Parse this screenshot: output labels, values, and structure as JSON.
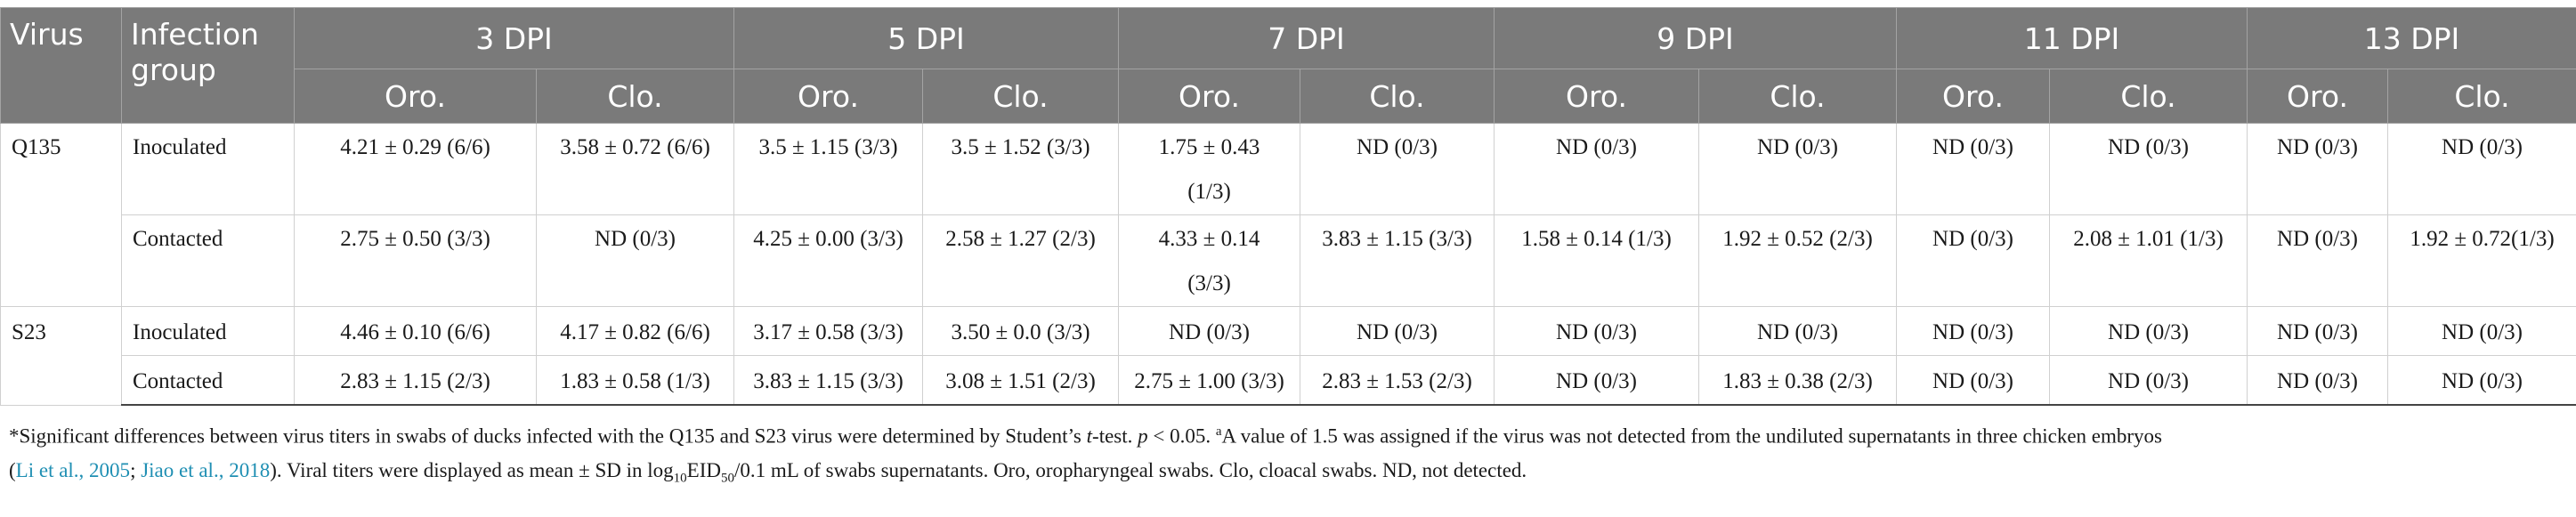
{
  "header": {
    "virus": "Virus",
    "group": "Infection group",
    "dpi": [
      "3 DPI",
      "5 DPI",
      "7 DPI",
      "9 DPI",
      "11 DPI",
      "13 DPI"
    ],
    "oro": "Oro.",
    "clo": "Clo."
  },
  "rows": [
    {
      "virus": "Q135",
      "group": "Inoculated",
      "cells": [
        "4.21 ± 0.29 (6/6)",
        "3.58 ± 0.72 (6/6)",
        "3.5 ± 1.15 (3/3)",
        "3.5 ± 1.52 (3/3)",
        "1.75 ± 0.43 (1/3)",
        "ND (0/3)",
        "ND (0/3)",
        "ND (0/3)",
        "ND (0/3)",
        "ND (0/3)",
        "ND (0/3)",
        "ND (0/3)"
      ]
    },
    {
      "virus": "",
      "group": "Contacted",
      "cells": [
        "2.75 ± 0.50 (3/3)",
        "ND (0/3)",
        "4.25 ± 0.00 (3/3)",
        "2.58 ± 1.27 (2/3)",
        "4.33 ± 0.14 (3/3)",
        "3.83 ± 1.15 (3/3)",
        "1.58 ± 0.14 (1/3)",
        "1.92 ± 0.52 (2/3)",
        "ND (0/3)",
        "2.08 ± 1.01 (1/3)",
        "ND (0/3)",
        "1.92 ± 0.72(1/3)"
      ]
    },
    {
      "virus": "S23",
      "group": "Inoculated",
      "cells": [
        "4.46 ± 0.10 (6/6)",
        "4.17 ± 0.82 (6/6)",
        "3.17 ± 0.58 (3/3)",
        "3.50 ± 0.0 (3/3)",
        "ND (0/3)",
        "ND (0/3)",
        "ND (0/3)",
        "ND (0/3)",
        "ND (0/3)",
        "ND (0/3)",
        "ND (0/3)",
        "ND (0/3)"
      ]
    },
    {
      "virus": "",
      "group": "Contacted",
      "cells": [
        "2.83 ± 1.15 (2/3)",
        "1.83 ± 0.58 (1/3)",
        "3.83 ± 1.15 (3/3)",
        "3.08 ± 1.51 (2/3)",
        "2.75 ± 1.00 (3/3)",
        "2.83 ± 1.53 (2/3)",
        "ND (0/3)",
        "1.83 ± 0.38 (2/3)",
        "ND (0/3)",
        "ND (0/3)",
        "ND (0/3)",
        "ND (0/3)"
      ]
    }
  ],
  "footnote": {
    "part1": "*Significant differences between virus titers in swabs of ducks infected with the Q135 and S23 virus were determined by Student’s ",
    "t": "t",
    "part2": "-test. ",
    "p": "p",
    "part3": " < 0.05. ",
    "sup_a": "a",
    "part4": "A value of 1.5 was assigned if the virus was not detected from the undiluted supernatants in three chicken embryos",
    "paren_open": "(",
    "cite1": "Li et al., 2005",
    "sep": "; ",
    "cite2": "Jiao et al., 2018",
    "part5": "). Viral titers were displayed as mean ± SD in log",
    "sub10": "10",
    "eid": "EID",
    "sub50": "50",
    "part6": "/0.1 mL of swabs supernatants. Oro, oropharyngeal swabs. Clo, cloacal swabs. ND, not detected."
  }
}
